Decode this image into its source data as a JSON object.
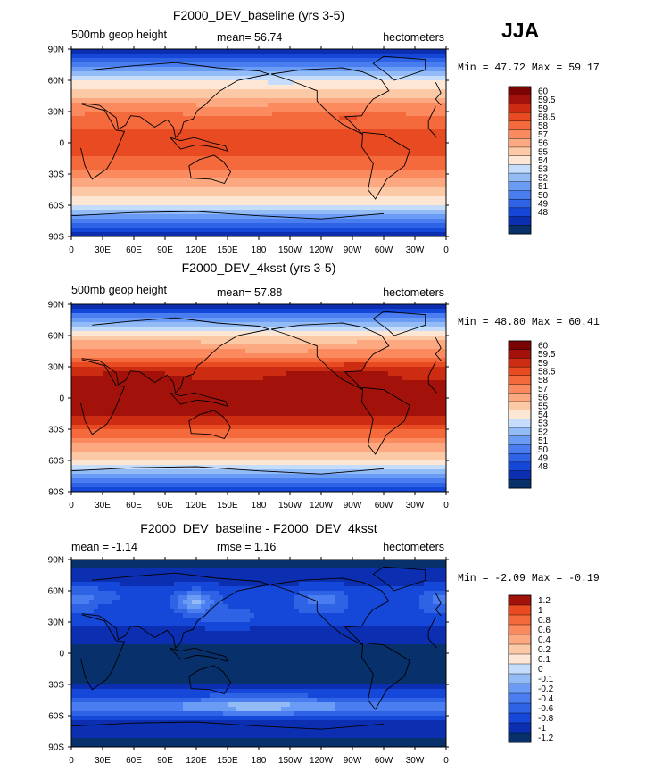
{
  "season": "JJA",
  "colors": {
    "levels_geop": [
      "#08306b",
      "#0b2fb0",
      "#1547d8",
      "#2e63e6",
      "#4a7ef0",
      "#6b9cf5",
      "#93bcf7",
      "#c6dcfb",
      "#fde7d4",
      "#fcc9a6",
      "#fca982",
      "#fb8a5e",
      "#f56a3d",
      "#e84a22",
      "#cc2c12",
      "#a3120a",
      "#7a0403"
    ],
    "levels_diff": [
      "#08306b",
      "#0b2fb0",
      "#1547d8",
      "#2e63e6",
      "#4a7ef0",
      "#6b9cf5",
      "#93bcf7",
      "#c6dcfb",
      "#fde7d4",
      "#fcc9a6",
      "#fca982",
      "#fb8a5e",
      "#f56a3d",
      "#e84a22",
      "#a3120a"
    ]
  },
  "chart_data": [
    {
      "type": "heatmap",
      "title": "F2000_DEV_baseline (yrs 3-5)",
      "left_string": "500mb geop height",
      "center_string": "mean=  56.74",
      "right_string": "hectometers",
      "min_max_string": "Min =  47.72 Max =  59.17",
      "min": 47.72,
      "max": 59.17,
      "mean": 56.74,
      "field": "baseline",
      "colorbar_labels": [
        "60",
        "59.5",
        "59",
        "58.5",
        "58",
        "57",
        "56",
        "55",
        "54",
        "53",
        "52",
        "51",
        "50",
        "49",
        "48"
      ],
      "xticks": [
        "0",
        "30E",
        "60E",
        "90E",
        "120E",
        "150E",
        "180",
        "150W",
        "120W",
        "90W",
        "60W",
        "30W",
        "0"
      ],
      "yticks": [
        "90N",
        "60N",
        "30N",
        "0",
        "30S",
        "60S",
        "90S"
      ]
    },
    {
      "type": "heatmap",
      "title": "F2000_DEV_4ksst (yrs 3-5)",
      "left_string": "500mb geop height",
      "center_string": "mean=  57.88",
      "right_string": "hectometers",
      "min_max_string": "Min =  48.80 Max =  60.41",
      "min": 48.8,
      "max": 60.41,
      "mean": 57.88,
      "field": "ksst",
      "colorbar_labels": [
        "60",
        "59.5",
        "59",
        "58.5",
        "58",
        "57",
        "56",
        "55",
        "54",
        "53",
        "52",
        "51",
        "50",
        "49",
        "48"
      ],
      "xticks": [
        "0",
        "30E",
        "60E",
        "90E",
        "120E",
        "150E",
        "180",
        "150W",
        "120W",
        "90W",
        "60W",
        "30W",
        "0"
      ],
      "yticks": [
        "90N",
        "60N",
        "30N",
        "0",
        "30S",
        "60S",
        "90S"
      ]
    },
    {
      "type": "heatmap",
      "title": "F2000_DEV_baseline - F2000_DEV_4ksst",
      "left_string": "mean =  -1.14",
      "center_string": "rmse =   1.16",
      "right_string": "hectometers",
      "min_max_string": "Min =  -2.09 Max =  -0.19",
      "min": -2.09,
      "max": -0.19,
      "mean": -1.14,
      "rmse": 1.16,
      "field": "diff",
      "colorbar_labels": [
        "1.2",
        "1",
        "0.8",
        "0.6",
        "0.4",
        "0.2",
        "0.1",
        "0",
        "-0.1",
        "-0.2",
        "-0.4",
        "-0.6",
        "-0.8",
        "-1",
        "-1.2"
      ],
      "xticks": [
        "0",
        "30E",
        "60E",
        "90E",
        "120E",
        "150E",
        "180",
        "150W",
        "120W",
        "90W",
        "60W",
        "30W",
        "0"
      ],
      "yticks": [
        "90N",
        "60N",
        "30N",
        "0",
        "30S",
        "60S",
        "90S"
      ]
    }
  ]
}
